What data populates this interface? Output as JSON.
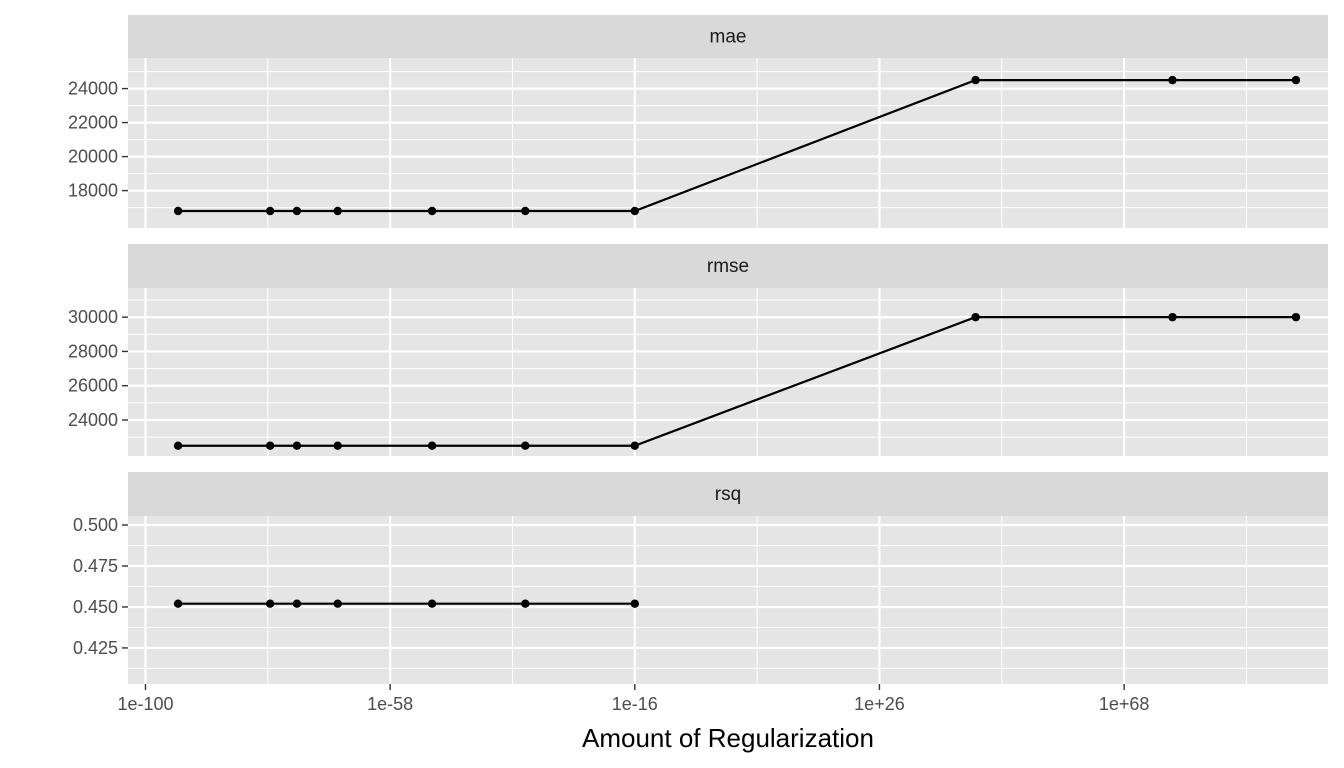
{
  "chart_data": {
    "type": "line",
    "facet_layout": "stacked-rows",
    "x_scale": "log10",
    "xlabel": "Amount of Regularization",
    "x_ticks": [
      "1e-100",
      "1e-58",
      "1e-16",
      "1e+26",
      "1e+68"
    ],
    "x_tick_exponents": [
      -100,
      -58,
      -16,
      26,
      68
    ],
    "xlim_exponent": [
      -103,
      103
    ],
    "x_exponents": [
      -94.4,
      -78.6,
      -74,
      -67,
      -50.8,
      -34.8,
      -16,
      42.5,
      76.3,
      97.5
    ],
    "grid": true,
    "panels": [
      {
        "label": "mae",
        "ylim": [
          15800,
          25800
        ],
        "y_ticks": [
          "24000",
          "22000",
          "20000",
          "18000"
        ],
        "y_tick_values": [
          24000,
          22000,
          20000,
          18000
        ],
        "values": [
          16800,
          16800,
          16800,
          16800,
          16800,
          16800,
          16800,
          24500,
          24500,
          24500
        ]
      },
      {
        "label": "rmse",
        "ylim": [
          21900,
          31700
        ],
        "y_ticks": [
          "30000",
          "28000",
          "26000",
          "24000"
        ],
        "y_tick_values": [
          30000,
          28000,
          26000,
          24000
        ],
        "values": [
          22500,
          22500,
          22500,
          22500,
          22500,
          22500,
          22500,
          30000,
          30000,
          30000
        ]
      },
      {
        "label": "rsq",
        "ylim": [
          0.403,
          0.5055
        ],
        "y_ticks": [
          "0.500",
          "0.475",
          "0.450",
          "0.425"
        ],
        "y_tick_values": [
          0.5,
          0.475,
          0.45,
          0.425
        ],
        "values": [
          0.452,
          0.452,
          0.452,
          0.452,
          0.452,
          0.452,
          0.452,
          null,
          null,
          null
        ]
      }
    ],
    "colors": {
      "panel_bg": "#e5e5e5",
      "strip_bg": "#d9d9d9",
      "grid": "#ffffff",
      "line": "#000000",
      "point": "#000000",
      "tick_text": "#4d4d4d",
      "tick_mark": "#333333"
    }
  }
}
